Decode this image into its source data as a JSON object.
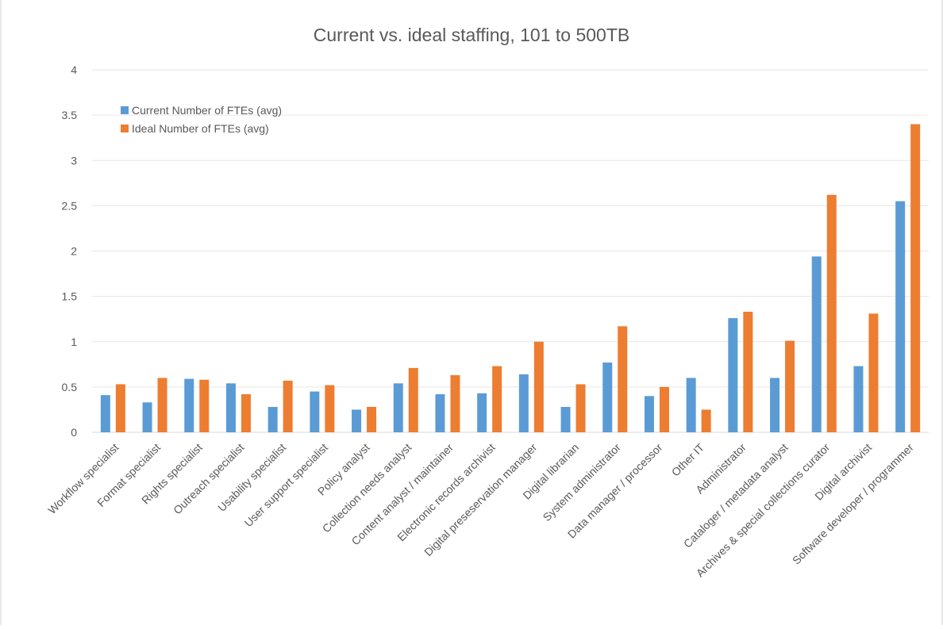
{
  "chart_data": {
    "type": "bar",
    "title": "Current vs. ideal staffing, 101 to 500TB",
    "xlabel": "",
    "ylabel": "",
    "ylim": [
      0,
      4
    ],
    "yticks": [
      "0",
      "0.5",
      "1",
      "1.5",
      "2",
      "2.5",
      "3",
      "3.5",
      "4"
    ],
    "grid": true,
    "legend_position": "top-left",
    "categories": [
      "Workflow specialist",
      "Format specialist",
      "Rights specialist",
      "Outreach specialist",
      "Usability specialist",
      "User support specialist",
      "Policy analyst",
      "Collection needs analyst",
      "Content analyst / maintainer",
      "Electronic records archivist",
      "Digital preseservation manager",
      "Digital librarian",
      "System administrator",
      "Data manager / processor",
      "Other IT",
      "Administrator",
      "Cataloger / metadata analyst",
      "Archives & special collections curator",
      "Digital archivist",
      "Software developer / programmer"
    ],
    "series": [
      {
        "name": "Current Number of FTEs (avg)",
        "color": "#5b9bd5",
        "values": [
          0.41,
          0.33,
          0.59,
          0.54,
          0.28,
          0.45,
          0.25,
          0.54,
          0.42,
          0.43,
          0.64,
          0.28,
          0.77,
          0.4,
          0.6,
          1.26,
          0.6,
          1.94,
          0.73,
          2.55
        ]
      },
      {
        "name": "Ideal Number of FTEs (avg)",
        "color": "#ed7d31",
        "values": [
          0.53,
          0.6,
          0.58,
          0.42,
          0.57,
          0.52,
          0.28,
          0.71,
          0.63,
          0.73,
          1.0,
          0.53,
          1.17,
          0.5,
          0.25,
          1.33,
          1.01,
          2.62,
          1.31,
          3.4
        ]
      }
    ]
  }
}
